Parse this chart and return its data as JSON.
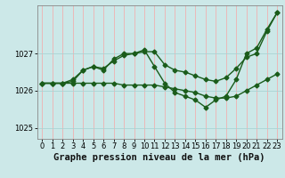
{
  "xlabel": "Graphe pression niveau de la mer (hPa)",
  "background_color": "#cce8e8",
  "grid_color_v": "#f0b0b0",
  "grid_color_h": "#aad4d4",
  "line_color": "#1a5c1a",
  "ylim": [
    1024.7,
    1028.3
  ],
  "xlim": [
    -0.5,
    23.5
  ],
  "yticks": [
    1025,
    1026,
    1027
  ],
  "xticks": [
    0,
    1,
    2,
    3,
    4,
    5,
    6,
    7,
    8,
    9,
    10,
    11,
    12,
    13,
    14,
    15,
    16,
    17,
    18,
    19,
    20,
    21,
    22,
    23
  ],
  "line1_x": [
    0,
    1,
    2,
    3,
    4,
    5,
    6,
    7,
    8,
    9,
    10,
    11,
    12,
    13,
    14,
    15,
    16,
    17,
    18,
    19,
    20,
    21,
    22,
    23
  ],
  "line1_y": [
    1026.2,
    1026.2,
    1026.2,
    1026.3,
    1026.55,
    1026.65,
    1026.6,
    1026.8,
    1026.95,
    1027.0,
    1027.05,
    1027.05,
    1026.7,
    1026.55,
    1026.5,
    1026.4,
    1026.3,
    1026.25,
    1026.35,
    1026.6,
    1026.9,
    1027.0,
    1027.6,
    1028.1
  ],
  "line2_x": [
    0,
    1,
    2,
    3,
    4,
    5,
    6,
    7,
    8,
    9,
    10,
    11,
    12,
    13,
    14,
    15,
    16,
    17,
    18,
    19,
    20,
    21,
    22,
    23
  ],
  "line2_y": [
    1026.2,
    1026.2,
    1026.2,
    1026.25,
    1026.55,
    1026.65,
    1026.55,
    1026.85,
    1027.0,
    1027.0,
    1027.1,
    1026.65,
    1026.2,
    1025.95,
    1025.85,
    1025.75,
    1025.55,
    1025.75,
    1025.85,
    1026.3,
    1027.0,
    1027.15,
    1027.65,
    1028.1
  ],
  "line3_x": [
    0,
    1,
    2,
    3,
    4,
    5,
    6,
    7,
    8,
    9,
    10,
    11,
    12,
    13,
    14,
    15,
    16,
    17,
    18,
    19,
    20,
    21,
    22,
    23
  ],
  "line3_y": [
    1026.2,
    1026.2,
    1026.2,
    1026.2,
    1026.2,
    1026.2,
    1026.2,
    1026.2,
    1026.15,
    1026.15,
    1026.15,
    1026.15,
    1026.1,
    1026.05,
    1026.0,
    1025.95,
    1025.85,
    1025.8,
    1025.8,
    1025.85,
    1026.0,
    1026.15,
    1026.3,
    1026.45
  ],
  "marker": "D",
  "markersize": 2.5,
  "linewidth": 1.0,
  "xlabel_fontsize": 7.5,
  "tick_fontsize": 6.0
}
